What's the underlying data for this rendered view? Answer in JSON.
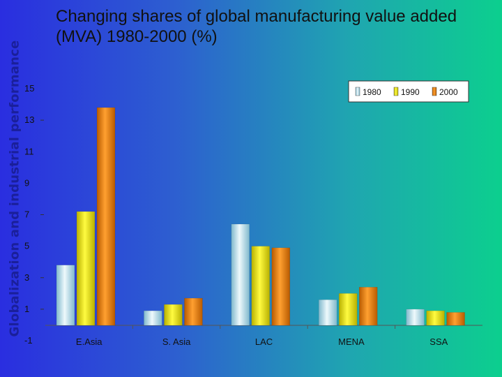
{
  "side_label": "Globalization and industrial performance",
  "title": "Changing shares of global manufacturing value added (MVA) 1980-2000 (%)",
  "chart_data": {
    "type": "bar",
    "categories": [
      "E.Asia",
      "S. Asia",
      "LAC",
      "MENA",
      "SSA"
    ],
    "series": [
      {
        "name": "1980",
        "values": [
          3.8,
          0.9,
          6.4,
          1.6,
          1.0
        ],
        "color": "#bfe3f0"
      },
      {
        "name": "1990",
        "values": [
          7.2,
          1.3,
          5.0,
          2.0,
          0.9
        ],
        "color": "#e8e600"
      },
      {
        "name": "2000",
        "values": [
          13.8,
          1.7,
          4.9,
          2.4,
          0.8
        ],
        "color": "#e07800"
      }
    ],
    "y_ticks": [
      "15",
      "13",
      "11",
      "9",
      "7",
      "5",
      "3",
      "1",
      "-1"
    ],
    "ylim": [
      -1,
      15
    ],
    "legend_position": "top-right",
    "grid": false
  }
}
